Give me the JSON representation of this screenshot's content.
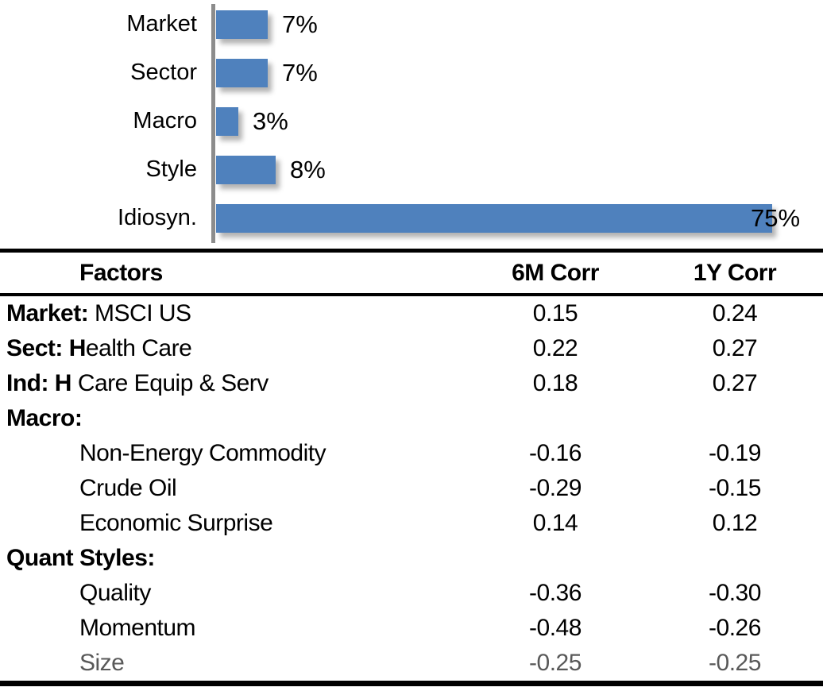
{
  "chart_data": {
    "type": "bar",
    "orientation": "horizontal",
    "categories": [
      "Market",
      "Sector",
      "Macro",
      "Style",
      "Idiosyn."
    ],
    "values": [
      7,
      7,
      3,
      8,
      75
    ],
    "value_labels": [
      "7%",
      "7%",
      "3%",
      "8%",
      "75%"
    ],
    "unit": "%",
    "xlim": [
      0,
      80
    ],
    "grid": false,
    "legend": false,
    "bar_color": "#4F81BD",
    "axis_color": "#8C8C8C"
  },
  "table": {
    "headers": [
      "Factors",
      "6M Corr",
      "1Y Corr"
    ],
    "rows": [
      {
        "bold": "Market:",
        "regular": " MSCI US",
        "indent": false,
        "corr6m": "0.15",
        "corr1y": "0.24",
        "muted": false
      },
      {
        "bold": "Sect: H",
        "regular": "ealth Care",
        "indent": false,
        "corr6m": "0.22",
        "corr1y": "0.27",
        "muted": false
      },
      {
        "bold": "Ind: H",
        "regular": " Care Equip & Serv",
        "indent": false,
        "corr6m": "0.18",
        "corr1y": "0.27",
        "muted": false
      },
      {
        "bold": "Macro:",
        "regular": "",
        "indent": false,
        "corr6m": "",
        "corr1y": "",
        "muted": false
      },
      {
        "bold": "",
        "regular": "Non-Energy Commodity",
        "indent": true,
        "corr6m": "-0.16",
        "corr1y": "-0.19",
        "muted": false
      },
      {
        "bold": "",
        "regular": "Crude Oil",
        "indent": true,
        "corr6m": "-0.29",
        "corr1y": "-0.15",
        "muted": false
      },
      {
        "bold": "",
        "regular": "Economic Surprise",
        "indent": true,
        "corr6m": "0.14",
        "corr1y": "0.12",
        "muted": false
      },
      {
        "bold": "Quant Styles:",
        "regular": "",
        "indent": false,
        "corr6m": "",
        "corr1y": "",
        "muted": false
      },
      {
        "bold": "",
        "regular": "Quality",
        "indent": true,
        "corr6m": "-0.36",
        "corr1y": "-0.30",
        "muted": false
      },
      {
        "bold": "",
        "regular": "Momentum",
        "indent": true,
        "corr6m": "-0.48",
        "corr1y": "-0.26",
        "muted": false
      },
      {
        "bold": "",
        "regular": "Size",
        "indent": true,
        "corr6m": "-0.25",
        "corr1y": "-0.25",
        "muted": true
      }
    ],
    "muted_text_color": "#595959",
    "border_color": "#000000"
  }
}
